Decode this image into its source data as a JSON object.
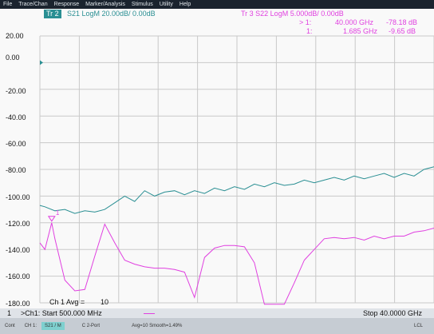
{
  "menu": [
    "File",
    "Trace/Chan",
    "Response",
    "Marker/Analysis",
    "Stimulus",
    "Utility",
    "Help"
  ],
  "trace2": {
    "tag": "Tr 2",
    "desc": "S21 LogM 20.00dB/  0.00dB",
    "color": "#2a8f93"
  },
  "trace3": {
    "desc": "Tr 3   S22 LogM 5.000dB/  0.00dB",
    "color": "#e040e0"
  },
  "markers": [
    {
      "id": "> 1:",
      "freq": "40.000 GHz",
      "val": "-78.18 dB"
    },
    {
      "id": "1:",
      "freq": "1.685 GHz",
      "val": "-9.65 dB"
    }
  ],
  "y_ticks": [
    "20.00",
    "0.00",
    "-20.00",
    "-40.00",
    "-60.00",
    "-80.00",
    "-100.00",
    "-120.00",
    "-140.00",
    "-160.00",
    "-180.00"
  ],
  "marker_flag": "1",
  "ch_avg": "Ch 1 Avg =",
  "ch_avg_val": "10",
  "bottom": {
    "num": "1",
    "start": ">Ch1: Start  500.000 MHz",
    "stop": "Stop  40.0000 GHz"
  },
  "status": [
    "Cont",
    "CH 1:",
    "S21 / M",
    "C 2-Port",
    "Avg=10 Smooth=1.49%",
    "LCL"
  ],
  "chart_data": {
    "type": "line",
    "x_start": "500.000 MHz",
    "x_stop": "40.0000 GHz",
    "ylim": [
      -180,
      20
    ],
    "grid": true,
    "series": [
      {
        "name": "S21",
        "color": "#2a8f93",
        "x": [
          0.5,
          1,
          2,
          3,
          4,
          5,
          6,
          7,
          8,
          9,
          10,
          11,
          12,
          13,
          14,
          15,
          16,
          17,
          18,
          19,
          20,
          21,
          22,
          23,
          24,
          25,
          26,
          27,
          28,
          29,
          30,
          31,
          32,
          33,
          34,
          35,
          36,
          37,
          38,
          39,
          40
        ],
        "values": [
          -107,
          -108,
          -111,
          -110,
          -113,
          -111,
          -112,
          -110,
          -105,
          -100,
          -104,
          -96,
          -100,
          -97,
          -96,
          -99,
          -96,
          -98,
          -94,
          -96,
          -93,
          -95,
          -91,
          -93,
          -90,
          -92,
          -91,
          -88,
          -90,
          -88,
          -86,
          -88,
          -85,
          -87,
          -85,
          -83,
          -86,
          -83,
          -85,
          -80,
          -78
        ]
      },
      {
        "name": "S22",
        "color": "#e040e0",
        "x": [
          0.5,
          1,
          1.685,
          2,
          3,
          4,
          5,
          6,
          7,
          8,
          9,
          10,
          11,
          12,
          13,
          14,
          15,
          16,
          17,
          18,
          19,
          20,
          21,
          22,
          23,
          24,
          25,
          26,
          27,
          28,
          29,
          30,
          31,
          32,
          33,
          34,
          35,
          36,
          37,
          38,
          39,
          40
        ],
        "values": [
          -135,
          -140,
          -120,
          -132,
          -163,
          -171,
          -170,
          -145,
          -121,
          -135,
          -148,
          -151,
          -153,
          -154,
          -154,
          -155,
          -157,
          -176,
          -146,
          -139,
          -137,
          -137,
          -138,
          -150,
          -181,
          -181,
          -181,
          -165,
          -148,
          -140,
          -132,
          -131,
          -132,
          -131,
          -133,
          -130,
          -132,
          -130,
          -130,
          -127,
          -126,
          -124
        ]
      }
    ]
  }
}
